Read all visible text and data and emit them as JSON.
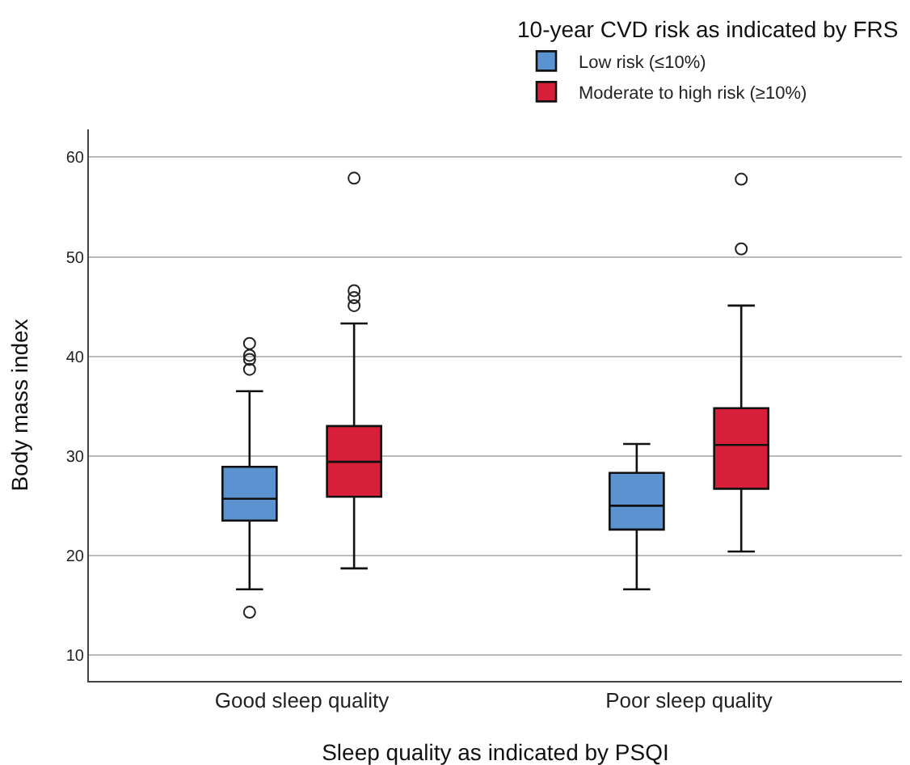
{
  "chart_data": {
    "type": "box",
    "xlabel": "Sleep quality as indicated by PSQI",
    "ylabel": "Body mass index",
    "legend_title": "10-year CVD risk as indicated by FRS",
    "categories": [
      "Good sleep quality",
      "Poor sleep quality"
    ],
    "series": [
      {
        "name": "Low risk (≤10%)",
        "color": "#5b93d0",
        "boxes": [
          {
            "low": 16.6,
            "q1": 23.5,
            "median": 25.7,
            "q3": 28.9,
            "high": 36.5,
            "outliers": [
              41.3,
              40.1,
              39.7,
              38.7,
              14.3
            ]
          },
          {
            "low": 16.6,
            "q1": 22.6,
            "median": 25.0,
            "q3": 28.3,
            "high": 31.2
          }
        ]
      },
      {
        "name": "Moderate to high risk (≥10%)",
        "color": "#d81f3a",
        "boxes": [
          {
            "low": 18.7,
            "q1": 25.9,
            "median": 29.4,
            "q3": 33.0,
            "high": 43.3,
            "outliers": [
              57.9,
              46.6,
              45.9,
              45.1
            ]
          },
          {
            "low": 20.4,
            "q1": 26.7,
            "median": 31.1,
            "q3": 34.8,
            "high": 45.1,
            "outliers": [
              57.8,
              50.8
            ]
          }
        ]
      }
    ],
    "ylim": [
      7.4,
      62.8
    ],
    "yticks": [
      10,
      20,
      30,
      40,
      50,
      60
    ],
    "grid": "y",
    "legend": "top right",
    "marker": "circle"
  }
}
